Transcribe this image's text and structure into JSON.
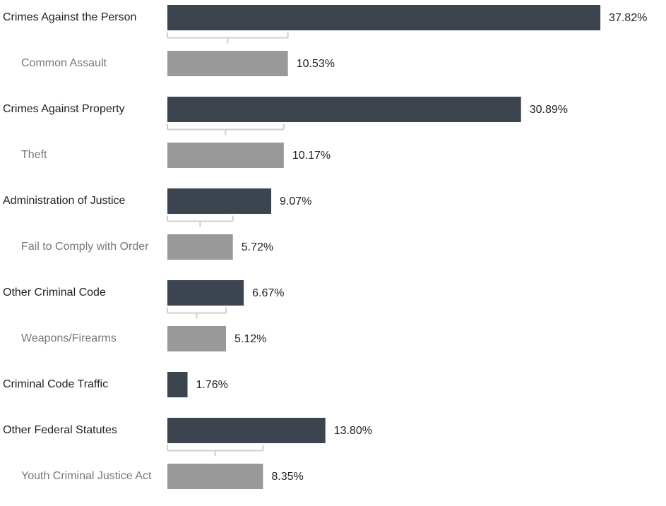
{
  "chart_data": {
    "type": "bar",
    "categories": [
      "Crimes Against the Person",
      "Common Assault",
      "Crimes Against Property",
      "Theft",
      "Administration of Justice",
      "Fail to Comply with Order",
      "Other Criminal Code",
      "Weapons/Firearms",
      "Criminal Code Traffic",
      "Other Federal Statutes",
      "Youth Criminal Justice Act"
    ],
    "values": [
      37.82,
      10.53,
      30.89,
      10.17,
      9.07,
      5.72,
      6.67,
      5.12,
      1.76,
      13.8,
      8.35
    ],
    "value_labels": [
      "37.82%",
      "10.53%",
      "30.89%",
      "10.17%",
      "9.07%",
      "5.72%",
      "6.67%",
      "5.12%",
      "1.76%",
      "13.80%",
      "8.35%"
    ],
    "colors": [
      "#3c4450",
      "#999999",
      "#3c4450",
      "#999999",
      "#3c4450",
      "#999999",
      "#3c4450",
      "#999999",
      "#3c4450",
      "#3c4450",
      "#999999"
    ]
  }
}
